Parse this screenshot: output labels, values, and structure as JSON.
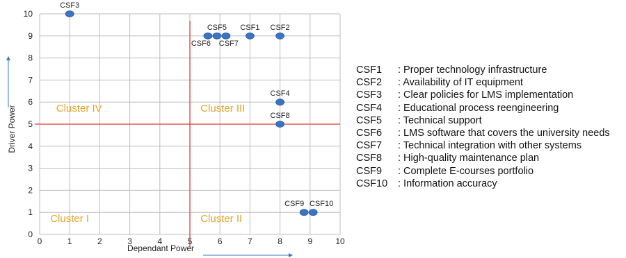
{
  "chart_data": {
    "type": "scatter",
    "xlabel": "Dependant Power",
    "ylabel": "Driver Power",
    "xlim": [
      0,
      10
    ],
    "ylim": [
      0,
      10
    ],
    "x_ticks": [
      "0",
      "1",
      "2",
      "3",
      "4",
      "5",
      "6",
      "7",
      "8",
      "9",
      "10"
    ],
    "y_ticks": [
      "0",
      "1",
      "2",
      "3",
      "4",
      "5",
      "6",
      "7",
      "8",
      "9",
      "10"
    ],
    "grid": true,
    "divider": {
      "x": 5,
      "y": 5,
      "color": "#e0393e"
    },
    "point_color": "#3a75c4",
    "points": [
      {
        "label": "CSF1",
        "x": 7,
        "y": 9
      },
      {
        "label": "CSF2",
        "x": 8,
        "y": 9
      },
      {
        "label": "CSF3",
        "x": 1,
        "y": 10
      },
      {
        "label": "CSF4",
        "x": 8,
        "y": 6
      },
      {
        "label": "CSF5",
        "x": 5.9,
        "y": 9
      },
      {
        "label": "CSF6",
        "x": 5.6,
        "y": 9
      },
      {
        "label": "CSF7",
        "x": 6.2,
        "y": 9
      },
      {
        "label": "CSF8",
        "x": 8,
        "y": 5
      },
      {
        "label": "CSF9",
        "x": 8.8,
        "y": 1
      },
      {
        "label": "CSF10",
        "x": 9.1,
        "y": 1
      }
    ],
    "clusters": [
      {
        "label": "Cluster IV",
        "x": 1.2,
        "y": 6
      },
      {
        "label": "Cluster III",
        "x": 6.0,
        "y": 6
      },
      {
        "label": "Cluster I",
        "x": 1.0,
        "y": 1
      },
      {
        "label": "Cluster II",
        "x": 6.0,
        "y": 1
      }
    ],
    "cluster_color": "#e3a52a",
    "arrow_color": "#3a75c4"
  },
  "legend": [
    {
      "code": "CSF1",
      "text": ": Proper technology infrastructure"
    },
    {
      "code": "CSF2",
      "text": ": Availability of IT equipment"
    },
    {
      "code": "CSF3",
      "text": ": Clear policies for LMS implementation"
    },
    {
      "code": "CSF4",
      "text": ": Educational process reengineering"
    },
    {
      "code": "CSF5",
      "text": ": Technical support"
    },
    {
      "code": "CSF6",
      "text": ": LMS software that covers the university needs"
    },
    {
      "code": "CSF7",
      "text": ": Technical integration with other systems"
    },
    {
      "code": "CSF8",
      "text": ": High-quality maintenance plan"
    },
    {
      "code": "CSF9",
      "text": ": Complete E-courses portfolio"
    },
    {
      "code": "CSF10",
      "text": ": Information accuracy"
    }
  ]
}
